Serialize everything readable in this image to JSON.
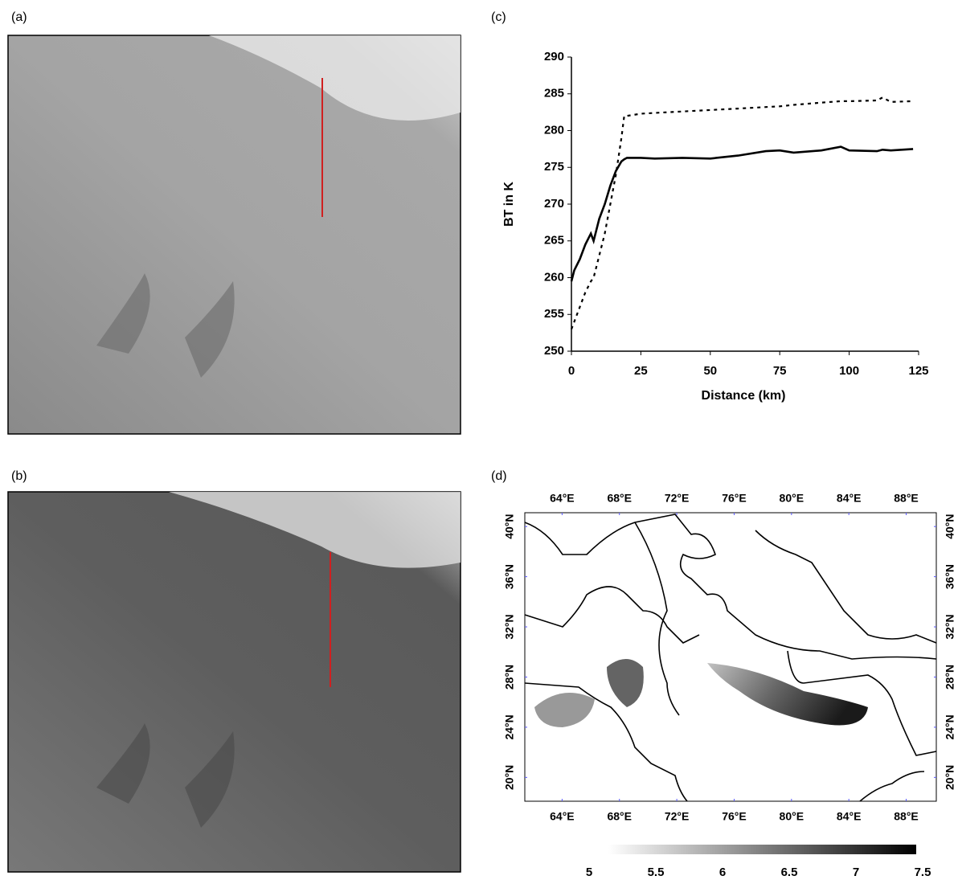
{
  "panel_labels": [
    "(a)",
    "(b)",
    "(c)",
    "(d)"
  ],
  "chart_data": [
    {
      "type": "line",
      "xlabel": "Distance (km)",
      "ylabel": "BT in K",
      "xlim": [
        0,
        125
      ],
      "ylim": [
        250,
        290
      ],
      "xticks": [
        0,
        25,
        50,
        75,
        100,
        125
      ],
      "yticks": [
        250,
        255,
        260,
        265,
        270,
        275,
        280,
        285,
        290
      ],
      "x": [
        0,
        1,
        3,
        5,
        7,
        8,
        10,
        12,
        14,
        16,
        18,
        19,
        20,
        25,
        30,
        40,
        50,
        60,
        70,
        75,
        80,
        90,
        97,
        100,
        110,
        112,
        115,
        123
      ],
      "series": [
        {
          "color": "#000000",
          "dashed": false,
          "values": [
            259.5,
            261,
            262.5,
            264.5,
            266,
            265,
            268,
            270,
            272.5,
            274.5,
            275.8,
            276.1,
            276.3,
            276.3,
            276.2,
            276.3,
            276.2,
            276.6,
            277.2,
            277.3,
            277,
            277.3,
            277.8,
            277.3,
            277.2,
            277.4,
            277.3,
            277.5
          ]
        },
        {
          "color": "#000000",
          "dashed": true,
          "values": [
            253,
            254,
            256,
            258,
            259.5,
            260,
            263,
            266,
            270,
            274,
            279,
            282,
            282,
            282.3,
            282.4,
            282.6,
            282.8,
            283,
            283.2,
            283.3,
            283.5,
            283.8,
            284,
            284,
            284.1,
            284.5,
            283.9,
            284
          ]
        }
      ]
    },
    {
      "type": "map",
      "xlim": [
        61.4,
        90.1
      ],
      "ylim": [
        18.1,
        41.1
      ],
      "xticks": [
        {
          "value": 64,
          "label": "64°E"
        },
        {
          "value": 68,
          "label": "68°E"
        },
        {
          "value": 72,
          "label": "72°E"
        },
        {
          "value": 76,
          "label": "76°E"
        },
        {
          "value": 80,
          "label": "80°E"
        },
        {
          "value": 84,
          "label": "84°E"
        },
        {
          "value": 88,
          "label": "88°E"
        }
      ],
      "yticks": [
        {
          "value": 20,
          "label": "20°N"
        },
        {
          "value": 24,
          "label": "24°N"
        },
        {
          "value": 28,
          "label": "28°N"
        },
        {
          "value": 32,
          "label": "32°N"
        },
        {
          "value": 36,
          "label": "36°N"
        },
        {
          "value": 40,
          "label": "40°N"
        }
      ],
      "clim": [
        5,
        7.5
      ],
      "colorbar_ticks": [
        5,
        5.5,
        6,
        6.5,
        7,
        7.5
      ]
    }
  ]
}
